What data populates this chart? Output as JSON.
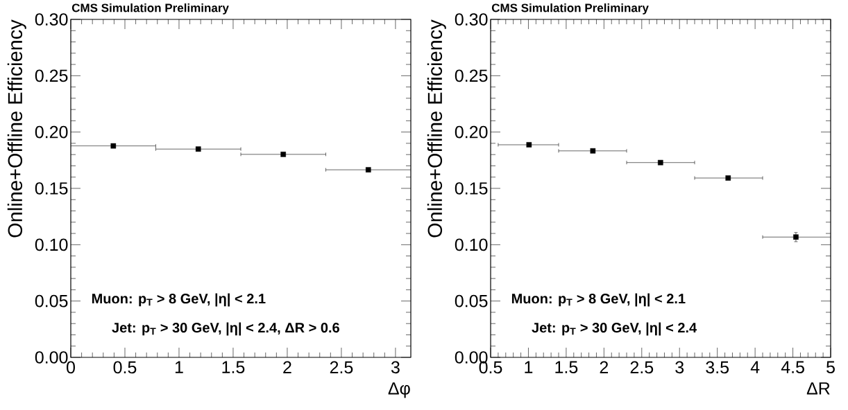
{
  "chart_data": [
    {
      "type": "scatter",
      "title": "CMS Simulation Preliminary",
      "xlabel": "Δφ",
      "ylabel": "Online+Offline Efficiency",
      "marker": "square",
      "color": "#000000",
      "x": [
        0.393,
        1.178,
        1.963,
        2.749
      ],
      "values": [
        0.1877,
        0.1849,
        0.1802,
        0.1665
      ],
      "xerrors": [
        [
          0,
          0.785
        ],
        [
          0.785,
          1.571
        ],
        [
          1.571,
          2.356
        ],
        [
          2.356,
          3.1416
        ]
      ],
      "xlim": [
        0,
        3.1416
      ],
      "xticks": [
        0,
        0.5,
        1,
        1.5,
        2,
        2.5,
        3
      ],
      "ylim": [
        0,
        0.3
      ],
      "yticks": [
        {
          "value": 0,
          "label": "0.00"
        },
        {
          "value": 0.05,
          "label": "0.05"
        },
        {
          "value": 0.1,
          "label": "0.10"
        },
        {
          "value": 0.15,
          "label": "0.15"
        },
        {
          "value": 0.2,
          "label": "0.20"
        },
        {
          "value": 0.25,
          "label": "0.25"
        },
        {
          "value": 0.3,
          "label": "0.30"
        }
      ],
      "annotations": [
        "Muon: p$_{T}$ > 8 GeV, |η| < 2.1",
        "Jet: p$_{T}$ > 30 GeV, |η| < 2.4, ΔR > 0.6"
      ]
    },
    {
      "type": "scatter",
      "title": "CMS Simulation Preliminary",
      "xlabel": "ΔR",
      "ylabel": "Online+Offline Efficiency",
      "marker": "square",
      "color": "#000000",
      "x": [
        1.008,
        1.853,
        2.748,
        3.643,
        4.54
      ],
      "values": [
        0.1887,
        0.1833,
        0.1729,
        0.1592,
        0.1068
      ],
      "errors": [
        null,
        null,
        null,
        null,
        [
          0.1027,
          0.1108
        ]
      ],
      "xerrors": [
        [
          0.6,
          1.4
        ],
        [
          1.4,
          2.3
        ],
        [
          2.3,
          3.2
        ],
        [
          3.2,
          4.1
        ],
        [
          4.1,
          5.0
        ]
      ],
      "xlim": [
        0.5,
        5
      ],
      "xticks": [
        0.5,
        1,
        1.5,
        2,
        2.5,
        3,
        3.5,
        4,
        4.5,
        5
      ],
      "ylim": [
        0,
        0.3
      ],
      "yticks": [
        {
          "value": 0,
          "label": "0.00"
        },
        {
          "value": 0.05,
          "label": "0.05"
        },
        {
          "value": 0.1,
          "label": "0.10"
        },
        {
          "value": 0.15,
          "label": "0.15"
        },
        {
          "value": 0.2,
          "label": "0.20"
        },
        {
          "value": 0.25,
          "label": "0.25"
        },
        {
          "value": 0.3,
          "label": "0.30"
        }
      ],
      "annotations": [
        "Muon: p$_{T}$ > 8 GeV, |η| < 2.1",
        "Jet: p$_{T}$ > 30 GeV, |η| < 2.4"
      ]
    }
  ]
}
